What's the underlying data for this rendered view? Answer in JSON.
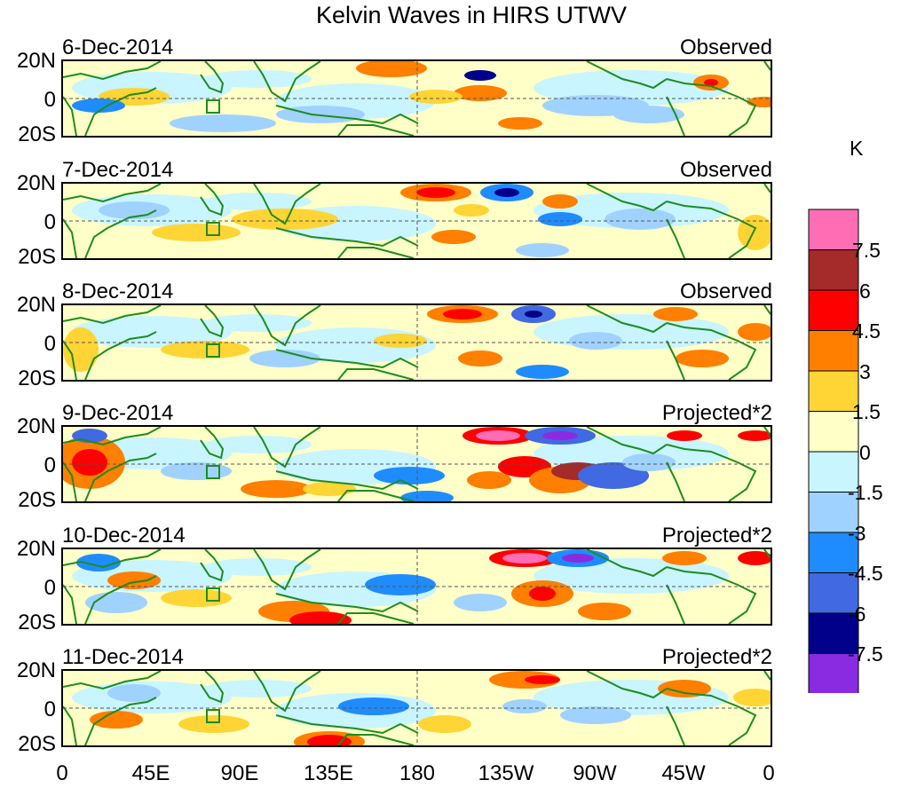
{
  "title": "Kelvin Waves in HIRS UTWV",
  "lat_labels": [
    "20N",
    "0",
    "20S"
  ],
  "panels": [
    {
      "date": "6-Dec-2014",
      "mode": "Observed"
    },
    {
      "date": "7-Dec-2014",
      "mode": "Observed"
    },
    {
      "date": "8-Dec-2014",
      "mode": "Observed"
    },
    {
      "date": "9-Dec-2014",
      "mode": "Projected*2"
    },
    {
      "date": "10-Dec-2014",
      "mode": "Projected*2"
    },
    {
      "date": "11-Dec-2014",
      "mode": "Projected*2"
    }
  ],
  "lon_labels": [
    "0",
    "45E",
    "90E",
    "135E",
    "180",
    "135W",
    "90W",
    "45W",
    "0"
  ],
  "colorbar": {
    "unit": "K",
    "labels": [
      "7.5",
      "6",
      "4.5",
      "3",
      "1.5",
      "0",
      "-1.5",
      "-3",
      "-4.5",
      "-6",
      "-7.5"
    ],
    "colors": [
      "#ff6eb4",
      "#a52a2a",
      "#ff0000",
      "#ff7f00",
      "#ffd435",
      "#ffffc8",
      "#c8f5ff",
      "#a0d2ff",
      "#1e8cff",
      "#4169e1",
      "#00008b",
      "#8a2be2"
    ]
  },
  "colors": {
    "land_outline": "#1e8c1e",
    "grid": "#555555"
  }
}
